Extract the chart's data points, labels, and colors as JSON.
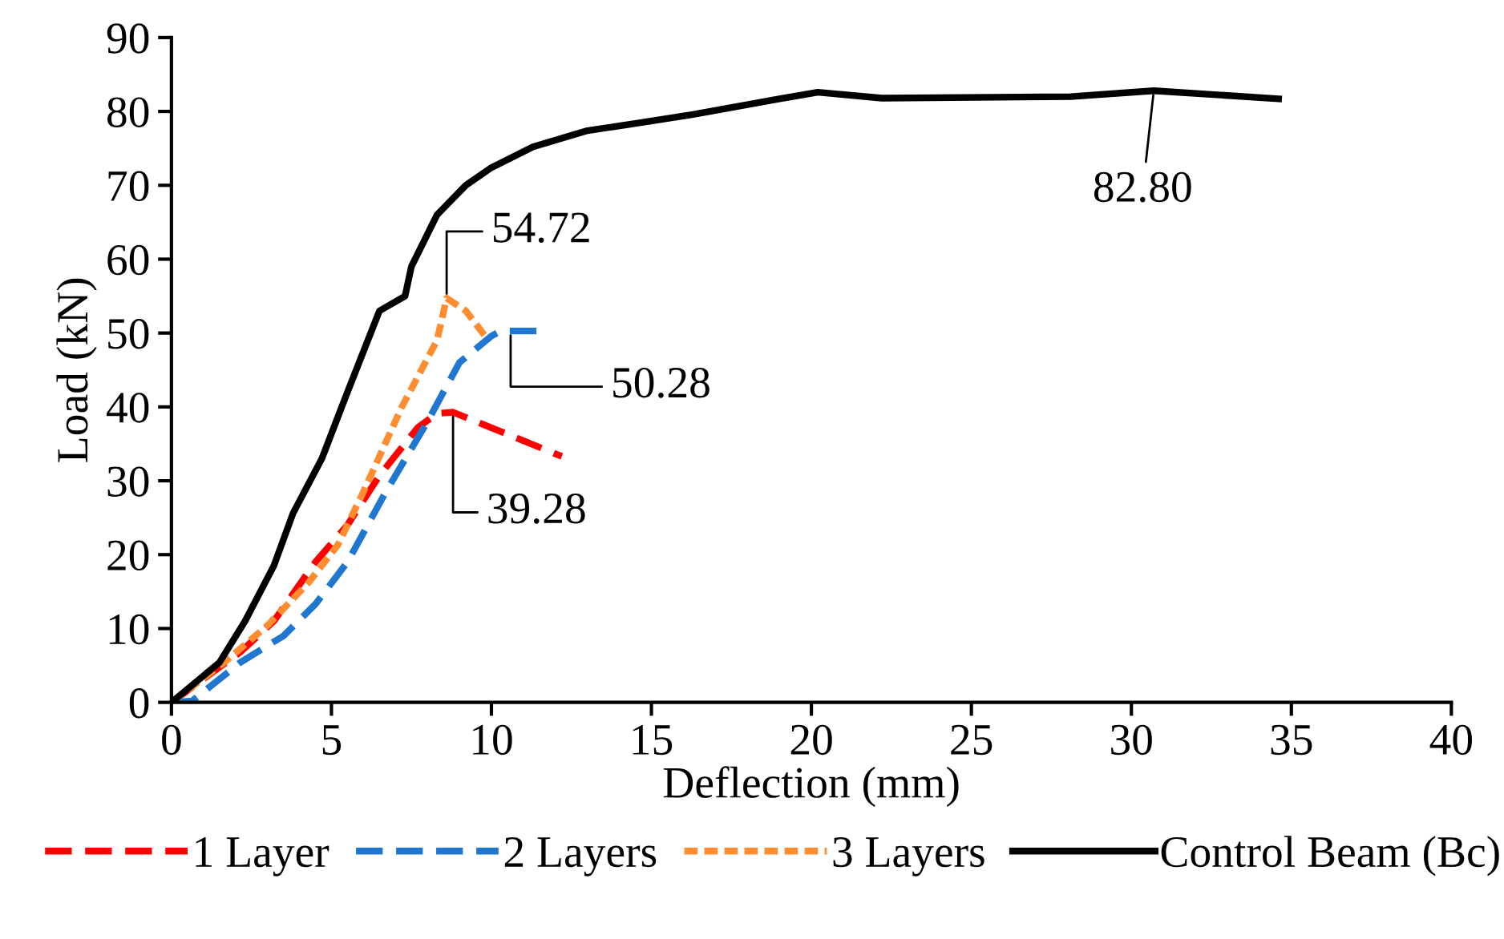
{
  "chart_data": {
    "type": "line",
    "xlabel": "Deflection (mm)",
    "ylabel": "Load (kN)",
    "xlim": [
      0,
      40
    ],
    "xticks": [
      0,
      5,
      10,
      15,
      20,
      25,
      30,
      35,
      40
    ],
    "ylim": [
      0,
      90
    ],
    "yticks": [
      0,
      10,
      20,
      30,
      40,
      50,
      60,
      70,
      80,
      90
    ],
    "grid": false,
    "legend": "bottom",
    "marker": "none",
    "series": [
      {
        "name": "1 Layer",
        "color": "#ff0000",
        "line_style": "dashed",
        "x": [
          0,
          2.15,
          3.2,
          4.5,
          5.5,
          6.5,
          7.7,
          8.3,
          8.8,
          12.2
        ],
        "values": [
          0,
          6.8,
          11,
          19,
          24,
          30.7,
          37.2,
          39.1,
          39.28,
          33.3
        ]
      },
      {
        "name": "2 Layers",
        "color": "#1f77d0",
        "line_style": "dashed",
        "x": [
          0,
          0.65,
          2.15,
          3.5,
          4.5,
          5.5,
          6.7,
          8,
          9,
          10,
          10.3,
          11.6
        ],
        "values": [
          0,
          0.2,
          5.4,
          9,
          13.3,
          19,
          28.5,
          38,
          46,
          49.6,
          50.28,
          50.28
        ]
      },
      {
        "name": "3 Layers",
        "color": "#ff8c2e",
        "line_style": "dotted",
        "x": [
          0,
          1.65,
          3,
          4.3,
          5.2,
          6,
          7.2,
          8.3,
          8.6,
          9.2,
          9.8
        ],
        "values": [
          0,
          5.4,
          10.4,
          16.3,
          21.3,
          28.5,
          40,
          49,
          54.72,
          53,
          49.6
        ]
      },
      {
        "name": "Control Beam (Bc)",
        "color": "#000000",
        "line_style": "solid",
        "x": [
          0,
          1.5,
          2.3,
          3.2,
          3.8,
          4.7,
          5.5,
          6.5,
          7.3,
          7.5,
          8.3,
          9.2,
          10,
          11.3,
          13,
          14.7,
          16.3,
          19,
          20.2,
          22.2,
          28.1,
          30.7,
          34.6
        ],
        "values": [
          0,
          5.4,
          11,
          18.5,
          25.6,
          33,
          42,
          53,
          55,
          59,
          66,
          70,
          72.4,
          75.2,
          77.4,
          78.5,
          79.6,
          81.7,
          82.6,
          81.8,
          82,
          82.8,
          81.7
        ]
      }
    ],
    "annotations": [
      {
        "text": "82.80",
        "x": 30.7,
        "y": 82.8
      },
      {
        "text": "54.72",
        "x": 8.6,
        "y": 54.72
      },
      {
        "text": "50.28",
        "x": 10.6,
        "y": 50.28
      },
      {
        "text": "39.28",
        "x": 8.8,
        "y": 39.28
      }
    ]
  }
}
